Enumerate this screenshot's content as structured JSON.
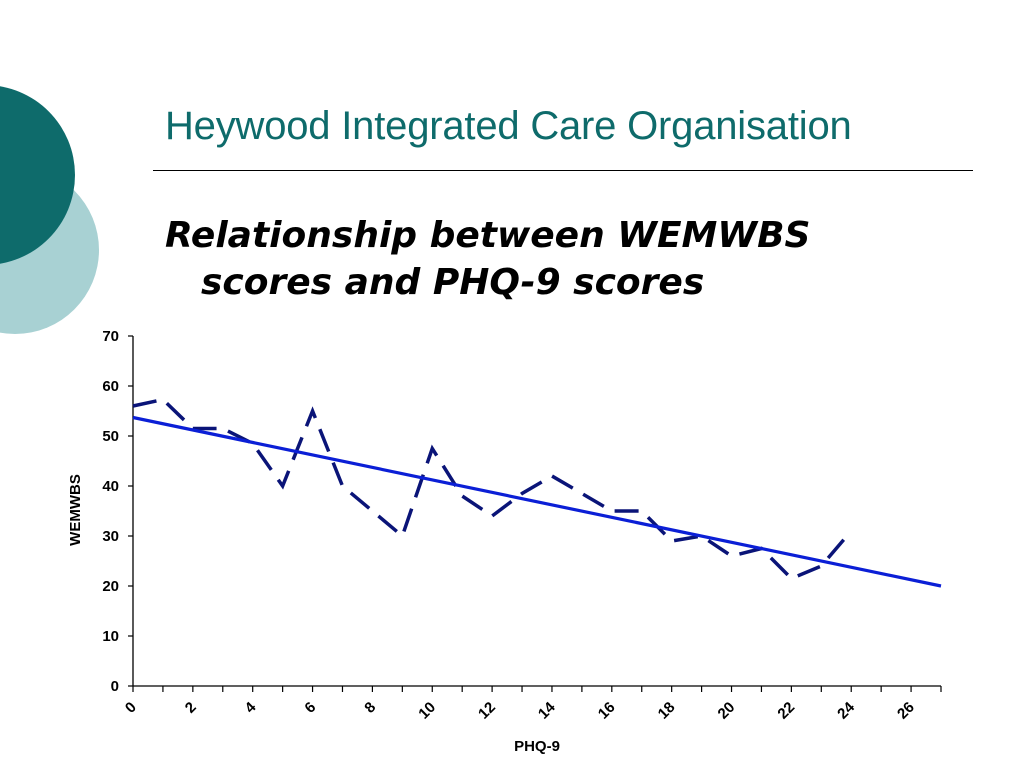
{
  "slide": {
    "title": "Heywood Integrated Care Organisation",
    "subtitle_line1": "Relationship between WEMWBS",
    "subtitle_line2": "scores and PHQ-9 scores"
  },
  "colors": {
    "title": "#0e6b6b",
    "circle_dark": "#0e6b6b",
    "circle_light": "#a8d1d3",
    "observed_line": "#0a1478",
    "trend_line": "#0b1fd6"
  },
  "chart_data": {
    "type": "line",
    "xlabel": "PHQ-9",
    "ylabel": "WEMWBS",
    "xlim": [
      0,
      27
    ],
    "ylim": [
      0,
      70
    ],
    "xticks": [
      0,
      2,
      4,
      6,
      8,
      10,
      12,
      14,
      16,
      18,
      20,
      22,
      24,
      26
    ],
    "yticks": [
      0,
      10,
      20,
      30,
      40,
      50,
      60,
      70
    ],
    "grid": false,
    "legend": "none",
    "series": [
      {
        "style": "dashed",
        "x": [
          0,
          1,
          2,
          3,
          4,
          5,
          6,
          7,
          8,
          9,
          10,
          11,
          12,
          13,
          14,
          15,
          16,
          17,
          18,
          19,
          20,
          21,
          22,
          23,
          24,
          25
        ],
        "y": [
          56,
          57.3,
          51.5,
          51.5,
          48.5,
          40,
          55,
          40,
          35,
          30,
          47.5,
          38,
          34,
          38.5,
          42,
          38.5,
          35,
          35,
          29,
          30,
          26,
          27.5,
          21.5,
          24,
          31,
          null
        ]
      },
      {
        "style": "solid",
        "type": "trendline",
        "x": [
          0,
          27
        ],
        "y": [
          53.7,
          20
        ]
      }
    ]
  }
}
